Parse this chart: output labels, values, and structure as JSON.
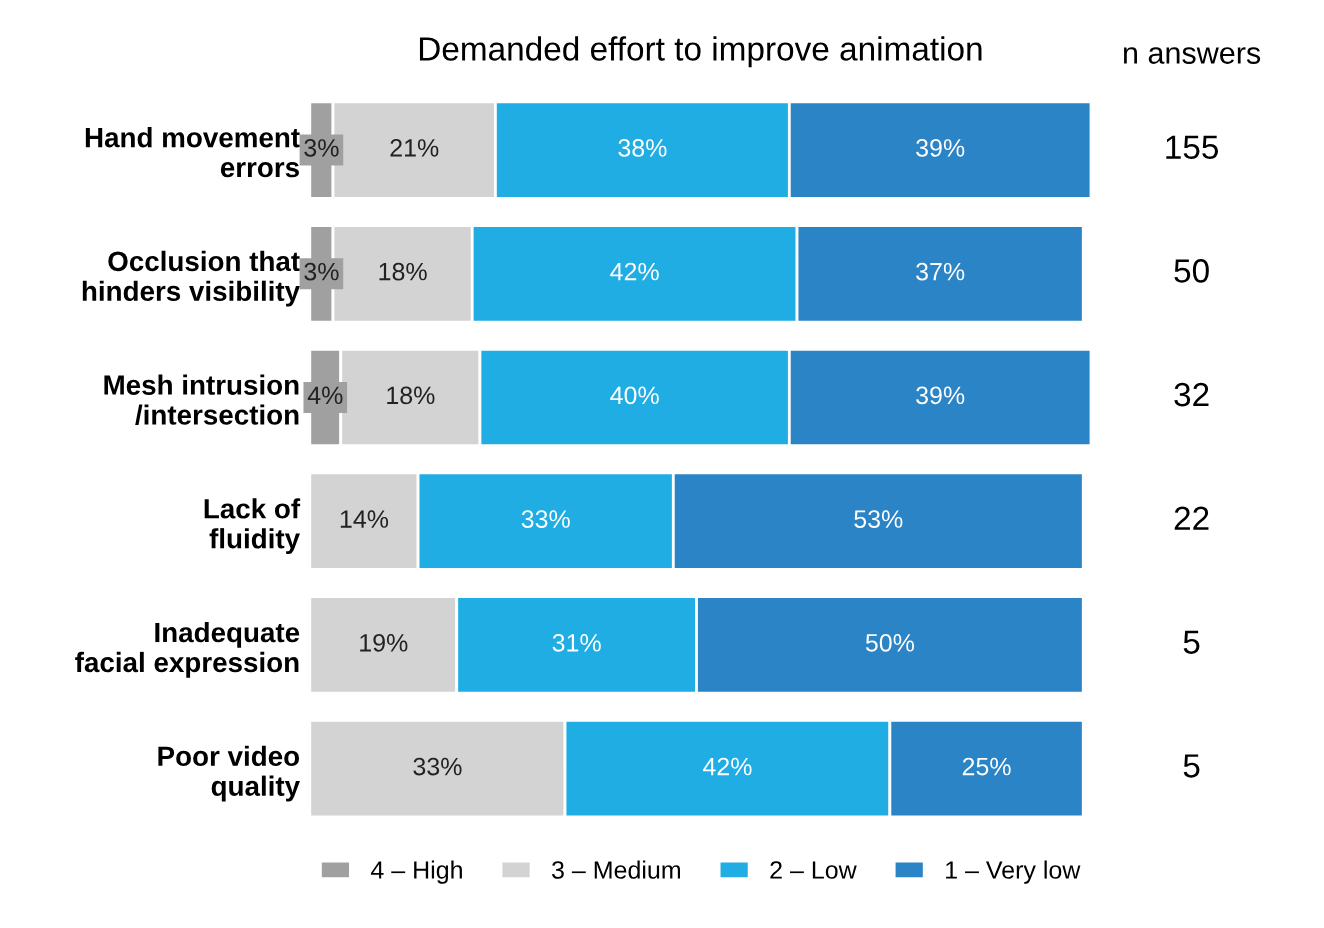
{
  "chart_data": {
    "type": "bar",
    "orientation": "horizontal",
    "stacked": true,
    "title": "Demanded effort to improve animation",
    "categories": [
      "Hand movement\nerrors",
      "Occlusion that\nhinders visibility",
      "Mesh intrusion\n/intersection",
      "Lack of\nfluidity",
      "Inadequate\nfacial expression",
      "Poor video\nquality"
    ],
    "series": [
      {
        "name": "4 – High",
        "color": "#a0a0a0",
        "values": [
          3,
          3,
          4,
          null,
          null,
          null
        ],
        "value_labels": [
          "3%",
          "3%",
          "4%",
          null,
          null,
          null
        ]
      },
      {
        "name": "3 – Medium",
        "color": "#d3d3d3",
        "values": [
          21,
          18,
          18,
          14,
          19,
          33
        ],
        "value_labels": [
          "21%",
          "18%",
          "18%",
          "14%",
          "19%",
          "33%"
        ]
      },
      {
        "name": "2 – Low",
        "color": "#1fade4",
        "values": [
          38,
          42,
          40,
          33,
          31,
          42
        ],
        "value_labels": [
          "38%",
          "42%",
          "40%",
          "33%",
          "31%",
          "42%"
        ]
      },
      {
        "name": "1 – Very low",
        "color": "#2a84c6",
        "values": [
          39,
          37,
          39,
          53,
          50,
          25
        ],
        "value_labels": [
          "39%",
          "37%",
          "39%",
          "53%",
          "50%",
          "25%"
        ]
      }
    ],
    "annotations": [
      "n answers",
      "155",
      "50",
      "32",
      "22",
      "5",
      "5"
    ],
    "legend": "bottom",
    "grid": false
  }
}
